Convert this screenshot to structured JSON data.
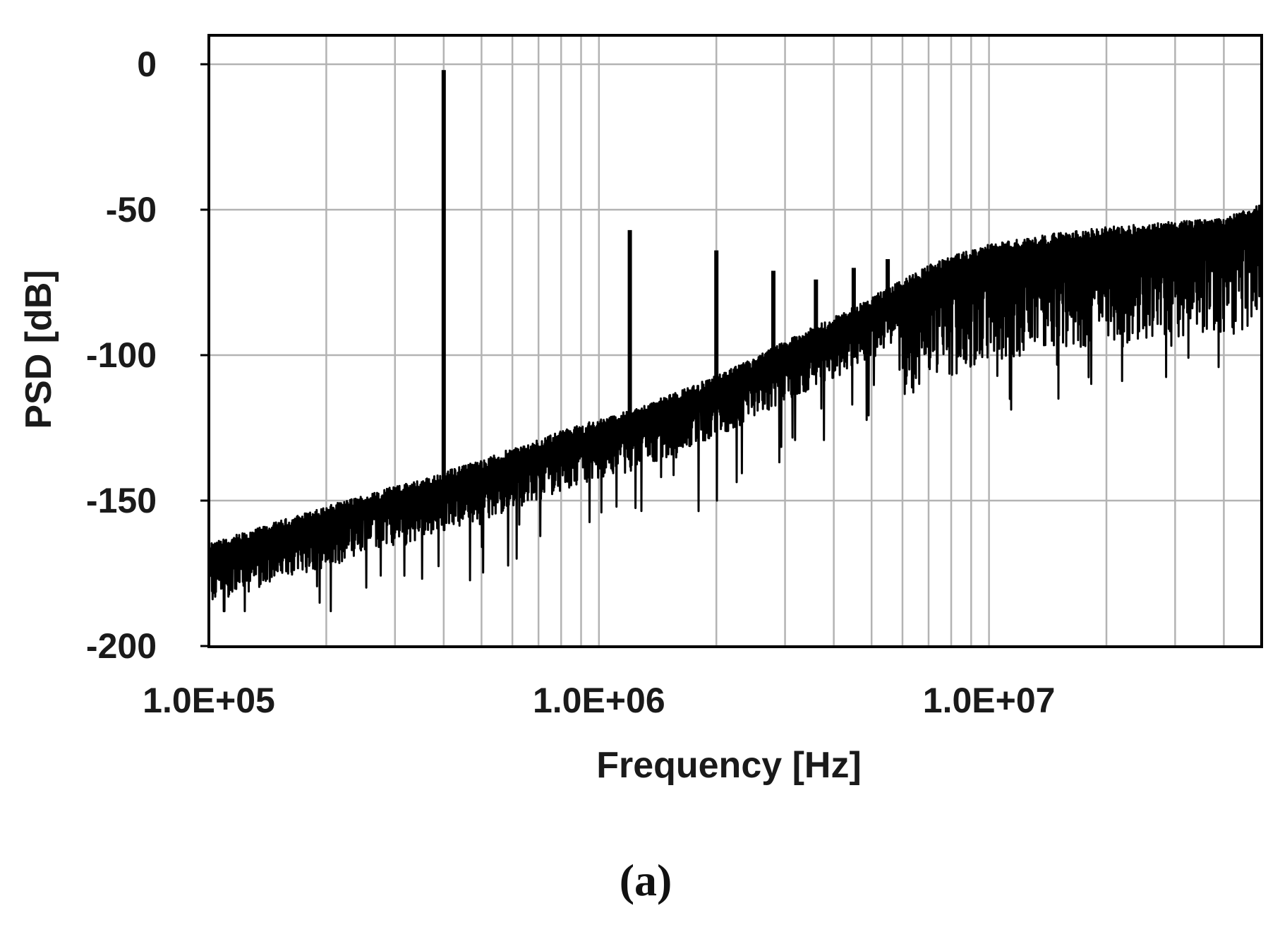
{
  "chart_data": {
    "type": "line",
    "xlabel": "Frequency [Hz]",
    "ylabel": "PSD [dB]",
    "x_scale": "log",
    "xlim": [
      100000,
      50000000
    ],
    "ylim": [
      -200,
      10
    ],
    "x_ticks": [
      {
        "value": 100000,
        "label": "1.0E+05"
      },
      {
        "value": 1000000,
        "label": "1.0E+06"
      },
      {
        "value": 10000000,
        "label": "1.0E+07"
      }
    ],
    "y_ticks": [
      {
        "value": 0,
        "label": "0"
      },
      {
        "value": -50,
        "label": "-50"
      },
      {
        "value": -100,
        "label": "-100"
      },
      {
        "value": -150,
        "label": "-150"
      },
      {
        "value": -200,
        "label": "-200"
      }
    ],
    "grid": true,
    "line_color": "#000000",
    "grid_color": "#b3b3b3",
    "series": [
      {
        "x": [
          100000,
          110000,
          130000,
          160000,
          200000,
          250000,
          300000,
          350000,
          400000,
          500000,
          600000,
          700000,
          800000,
          1000000,
          1200000,
          1500000,
          2000000,
          2500000,
          3000000,
          4000000,
          5000000,
          6000000,
          7000000,
          8000000,
          10000000,
          12000000,
          15000000,
          20000000,
          25000000,
          30000000,
          40000000,
          50000000
        ],
        "y": [
          -172,
          -170,
          -167,
          -163,
          -159,
          -155,
          -152,
          -150,
          -147,
          -143,
          -139,
          -136,
          -133,
          -129,
          -126,
          -121,
          -114,
          -108,
          -102,
          -94,
          -87,
          -81,
          -76,
          -73,
          -69,
          -67,
          -65,
          -63,
          -62,
          -61,
          -60,
          -55
        ],
        "peaks": [
          {
            "x": 400000,
            "y": -2
          },
          {
            "x": 1200000,
            "y": -57
          },
          {
            "x": 2000000,
            "y": -64
          },
          {
            "x": 2800000,
            "y": -71
          },
          {
            "x": 3600000,
            "y": -74
          },
          {
            "x": 4500000,
            "y": -70
          },
          {
            "x": 5500000,
            "y": -67
          }
        ]
      }
    ]
  },
  "caption": {
    "text": "(a)"
  }
}
